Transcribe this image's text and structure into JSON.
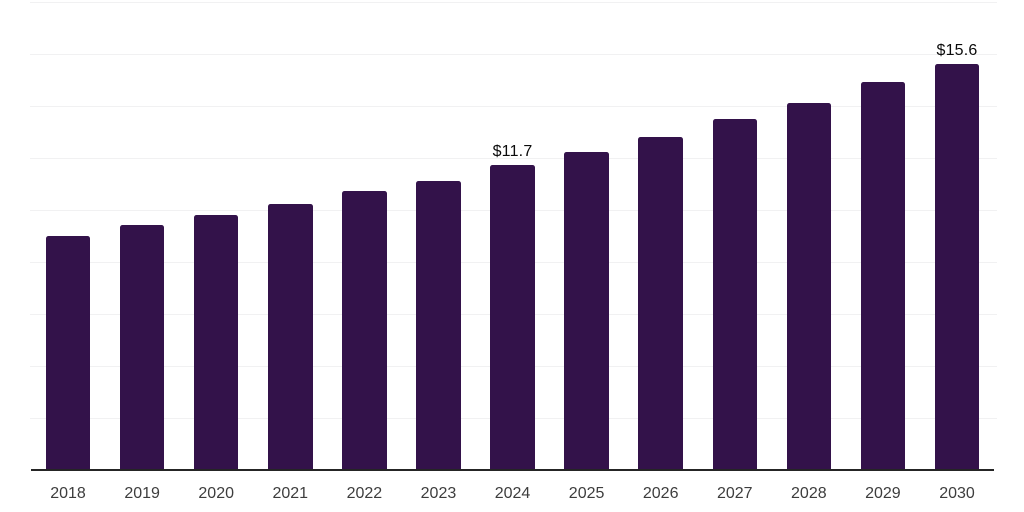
{
  "colors": {
    "bar": "#33124A",
    "gridline": "#f1f1f2",
    "axis_line": "#252525",
    "tick_label": "#3d3d3d",
    "value_label": "#0b0b0b",
    "background": "#ffffff"
  },
  "chart_data": {
    "type": "bar",
    "categories": [
      "2018",
      "2019",
      "2020",
      "2021",
      "2022",
      "2023",
      "2024",
      "2025",
      "2026",
      "2027",
      "2028",
      "2029",
      "2030"
    ],
    "values": [
      9.0,
      9.4,
      9.8,
      10.2,
      10.7,
      11.1,
      11.7,
      12.2,
      12.8,
      13.5,
      14.1,
      14.9,
      15.6
    ],
    "point_labels": [
      "",
      "",
      "",
      "",
      "",
      "",
      "$11.7",
      "",
      "",
      "",
      "",
      "",
      "$15.6"
    ],
    "xlabel": "",
    "ylabel": "",
    "ylim": [
      0,
      18
    ],
    "gridline_step": 2,
    "grid": true,
    "legend": "none",
    "currency_prefix": "$"
  }
}
